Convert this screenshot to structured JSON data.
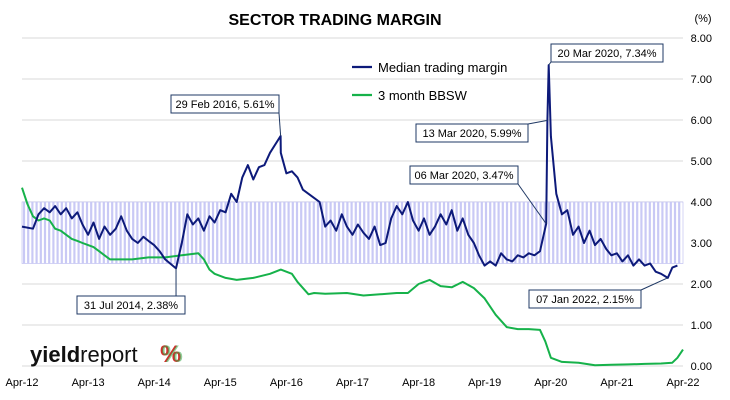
{
  "chart_data": {
    "type": "line",
    "title": "SECTOR TRADING MARGIN",
    "y_unit": "(%)",
    "ylim": [
      0,
      8
    ],
    "y_ticks": [
      "0.00",
      "1.00",
      "2.00",
      "3.00",
      "4.00",
      "5.00",
      "6.00",
      "7.00",
      "8.00"
    ],
    "x_ticks": [
      "Apr-12",
      "Apr-13",
      "Apr-14",
      "Apr-15",
      "Apr-16",
      "Apr-17",
      "Apr-18",
      "Apr-19",
      "Apr-20",
      "Apr-21",
      "Apr-22"
    ],
    "x_range": [
      "2012-04",
      "2022-04"
    ],
    "grid": true,
    "legend_position": "top-right",
    "shaded_band": {
      "from": 2.5,
      "to": 4.0,
      "color": "#c9c9f5"
    },
    "colors": {
      "median": "#0d1a7a",
      "bbsw": "#16b24a",
      "grid": "#d9d9d9",
      "annotation_border": "#1f3864",
      "logo_pct_red": "#d42a2a",
      "logo_pct_green": "#3aa84a"
    },
    "series": [
      {
        "name": "Median trading margin",
        "points": [
          [
            "2012-04",
            3.4
          ],
          [
            "2012-06",
            3.35
          ],
          [
            "2012-07",
            3.7
          ],
          [
            "2012-08",
            3.85
          ],
          [
            "2012-09",
            3.75
          ],
          [
            "2012-10",
            3.9
          ],
          [
            "2012-11",
            3.7
          ],
          [
            "2012-12",
            3.85
          ],
          [
            "2013-01",
            3.6
          ],
          [
            "2013-02",
            3.75
          ],
          [
            "2013-03",
            3.45
          ],
          [
            "2013-04",
            3.2
          ],
          [
            "2013-05",
            3.5
          ],
          [
            "2013-06",
            3.1
          ],
          [
            "2013-07",
            3.4
          ],
          [
            "2013-08",
            3.2
          ],
          [
            "2013-09",
            3.35
          ],
          [
            "2013-10",
            3.65
          ],
          [
            "2013-11",
            3.3
          ],
          [
            "2013-12",
            3.1
          ],
          [
            "2014-01",
            3.0
          ],
          [
            "2014-02",
            3.15
          ],
          [
            "2014-03",
            3.05
          ],
          [
            "2014-04",
            2.95
          ],
          [
            "2014-05",
            2.8
          ],
          [
            "2014-06",
            2.6
          ],
          [
            "2014-07-31",
            2.38
          ],
          [
            "2014-09",
            3.0
          ],
          [
            "2014-10",
            3.7
          ],
          [
            "2014-11",
            3.45
          ],
          [
            "2014-12",
            3.6
          ],
          [
            "2015-01",
            3.3
          ],
          [
            "2015-02",
            3.65
          ],
          [
            "2015-03",
            3.5
          ],
          [
            "2015-04",
            3.8
          ],
          [
            "2015-05",
            3.75
          ],
          [
            "2015-06",
            4.2
          ],
          [
            "2015-07",
            4.0
          ],
          [
            "2015-08",
            4.6
          ],
          [
            "2015-09",
            4.9
          ],
          [
            "2015-10",
            4.55
          ],
          [
            "2015-11",
            4.85
          ],
          [
            "2015-12",
            4.9
          ],
          [
            "2016-01",
            5.2
          ],
          [
            "2016-02-29",
            5.61
          ],
          [
            "2016-03",
            5.2
          ],
          [
            "2016-04",
            4.7
          ],
          [
            "2016-05",
            4.75
          ],
          [
            "2016-06",
            4.6
          ],
          [
            "2016-07",
            4.3
          ],
          [
            "2016-08",
            4.2
          ],
          [
            "2016-09",
            4.1
          ],
          [
            "2016-10",
            4.0
          ],
          [
            "2016-11",
            3.4
          ],
          [
            "2016-12",
            3.55
          ],
          [
            "2017-01",
            3.3
          ],
          [
            "2017-02",
            3.7
          ],
          [
            "2017-03",
            3.4
          ],
          [
            "2017-04",
            3.2
          ],
          [
            "2017-05",
            3.45
          ],
          [
            "2017-06",
            3.25
          ],
          [
            "2017-07",
            3.1
          ],
          [
            "2017-08",
            3.4
          ],
          [
            "2017-09",
            2.95
          ],
          [
            "2017-10",
            3.0
          ],
          [
            "2017-11",
            3.6
          ],
          [
            "2017-12",
            3.9
          ],
          [
            "2018-01",
            3.7
          ],
          [
            "2018-02",
            4.0
          ],
          [
            "2018-03",
            3.55
          ],
          [
            "2018-04",
            3.3
          ],
          [
            "2018-05",
            3.6
          ],
          [
            "2018-06",
            3.2
          ],
          [
            "2018-07",
            3.4
          ],
          [
            "2018-08",
            3.7
          ],
          [
            "2018-09",
            3.45
          ],
          [
            "2018-10",
            3.8
          ],
          [
            "2018-11",
            3.3
          ],
          [
            "2018-12",
            3.6
          ],
          [
            "2019-01",
            3.2
          ],
          [
            "2019-02",
            3.0
          ],
          [
            "2019-03",
            2.7
          ],
          [
            "2019-04",
            2.45
          ],
          [
            "2019-05",
            2.55
          ],
          [
            "2019-06",
            2.45
          ],
          [
            "2019-07",
            2.75
          ],
          [
            "2019-08",
            2.6
          ],
          [
            "2019-09",
            2.55
          ],
          [
            "2019-10",
            2.7
          ],
          [
            "2019-11",
            2.65
          ],
          [
            "2019-12",
            2.75
          ],
          [
            "2020-01",
            2.7
          ],
          [
            "2020-02",
            2.8
          ],
          [
            "2020-03-06",
            3.47
          ],
          [
            "2020-03-13",
            5.99
          ],
          [
            "2020-03-20",
            7.34
          ],
          [
            "2020-04",
            5.6
          ],
          [
            "2020-05",
            4.2
          ],
          [
            "2020-06",
            3.7
          ],
          [
            "2020-07",
            3.8
          ],
          [
            "2020-08",
            3.2
          ],
          [
            "2020-09",
            3.4
          ],
          [
            "2020-10",
            3.0
          ],
          [
            "2020-11",
            3.3
          ],
          [
            "2020-12",
            2.95
          ],
          [
            "2021-01",
            3.1
          ],
          [
            "2021-02",
            2.85
          ],
          [
            "2021-03",
            2.7
          ],
          [
            "2021-04",
            2.75
          ],
          [
            "2021-05",
            2.55
          ],
          [
            "2021-06",
            2.7
          ],
          [
            "2021-07",
            2.45
          ],
          [
            "2021-08",
            2.6
          ],
          [
            "2021-09",
            2.45
          ],
          [
            "2021-10",
            2.5
          ],
          [
            "2021-11",
            2.3
          ],
          [
            "2021-12",
            2.25
          ],
          [
            "2022-01-07",
            2.15
          ],
          [
            "2022-02",
            2.4
          ],
          [
            "2022-03",
            2.45
          ]
        ]
      },
      {
        "name": "3 month BBSW",
        "points": [
          [
            "2012-04",
            4.35
          ],
          [
            "2012-05",
            3.95
          ],
          [
            "2012-06",
            3.65
          ],
          [
            "2012-07",
            3.55
          ],
          [
            "2012-08",
            3.6
          ],
          [
            "2012-09",
            3.55
          ],
          [
            "2012-10",
            3.35
          ],
          [
            "2012-11",
            3.3
          ],
          [
            "2012-12",
            3.2
          ],
          [
            "2013-01",
            3.1
          ],
          [
            "2013-02",
            3.05
          ],
          [
            "2013-03",
            3.0
          ],
          [
            "2013-04",
            2.95
          ],
          [
            "2013-05",
            2.9
          ],
          [
            "2013-06",
            2.8
          ],
          [
            "2013-07",
            2.7
          ],
          [
            "2013-08",
            2.6
          ],
          [
            "2013-09",
            2.6
          ],
          [
            "2013-12",
            2.6
          ],
          [
            "2014-03",
            2.65
          ],
          [
            "2014-06",
            2.65
          ],
          [
            "2014-09",
            2.7
          ],
          [
            "2014-12",
            2.75
          ],
          [
            "2015-01",
            2.6
          ],
          [
            "2015-02",
            2.35
          ],
          [
            "2015-03",
            2.25
          ],
          [
            "2015-05",
            2.15
          ],
          [
            "2015-07",
            2.1
          ],
          [
            "2015-10",
            2.15
          ],
          [
            "2016-01",
            2.25
          ],
          [
            "2016-03",
            2.35
          ],
          [
            "2016-05",
            2.25
          ],
          [
            "2016-06",
            2.05
          ],
          [
            "2016-08",
            1.75
          ],
          [
            "2016-09",
            1.78
          ],
          [
            "2016-11",
            1.76
          ],
          [
            "2017-03",
            1.78
          ],
          [
            "2017-06",
            1.72
          ],
          [
            "2017-09",
            1.75
          ],
          [
            "2017-12",
            1.78
          ],
          [
            "2018-02",
            1.78
          ],
          [
            "2018-04",
            2.0
          ],
          [
            "2018-06",
            2.1
          ],
          [
            "2018-08",
            1.95
          ],
          [
            "2018-10",
            1.92
          ],
          [
            "2018-12",
            2.05
          ],
          [
            "2019-02",
            1.9
          ],
          [
            "2019-04",
            1.65
          ],
          [
            "2019-06",
            1.25
          ],
          [
            "2019-08",
            0.95
          ],
          [
            "2019-10",
            0.9
          ],
          [
            "2019-12",
            0.9
          ],
          [
            "2020-02",
            0.88
          ],
          [
            "2020-03",
            0.6
          ],
          [
            "2020-04",
            0.2
          ],
          [
            "2020-06",
            0.1
          ],
          [
            "2020-09",
            0.08
          ],
          [
            "2020-12",
            0.02
          ],
          [
            "2021-03",
            0.03
          ],
          [
            "2021-06",
            0.04
          ],
          [
            "2021-09",
            0.05
          ],
          [
            "2021-12",
            0.06
          ],
          [
            "2022-02",
            0.08
          ],
          [
            "2022-03",
            0.2
          ],
          [
            "2022-04",
            0.4
          ]
        ]
      }
    ],
    "annotations": [
      {
        "label": "29 Feb 2016,  5.61%",
        "date": "2016-02-29",
        "value": 5.61
      },
      {
        "label": "20 Mar 2020,  7.34%",
        "date": "2020-03-20",
        "value": 7.34
      },
      {
        "label": "13 Mar 2020,  5.99%",
        "date": "2020-03-13",
        "value": 5.99
      },
      {
        "label": "06 Mar 2020,  3.47%",
        "date": "2020-03-06",
        "value": 3.47
      },
      {
        "label": "31 Jul 2014,  2.38%",
        "date": "2014-07-31",
        "value": 2.38
      },
      {
        "label": "07 Jan 2022,  2.15%",
        "date": "2022-01-07",
        "value": 2.15
      }
    ]
  },
  "logo": {
    "word1": "yield",
    "word2": "report",
    "symbol": "%"
  }
}
